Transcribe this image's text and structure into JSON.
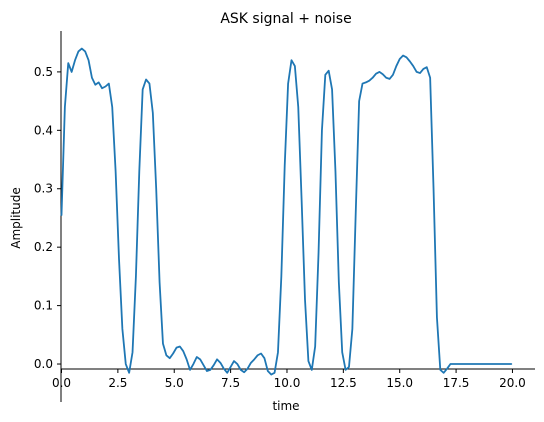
{
  "chart_data": {
    "type": "line",
    "title": "ASK signal + noise",
    "xlabel": "time",
    "ylabel": "Amplitude",
    "xlim": [
      0,
      21.0
    ],
    "ylim": [
      -0.065,
      0.57
    ],
    "xticks": [
      "0.0",
      "2.5",
      "5.0",
      "7.5",
      "10.0",
      "12.5",
      "15.0",
      "17.5",
      "20.0"
    ],
    "yticks": [
      "0.0",
      "0.1",
      "0.2",
      "0.3",
      "0.4",
      "0.5"
    ],
    "grid": false,
    "colors": {
      "line": "#1f77b4"
    },
    "series": [
      {
        "x": [
          0.0,
          0.15,
          0.3,
          0.45,
          0.6,
          0.75,
          0.9,
          1.05,
          1.2,
          1.35,
          1.5,
          1.65,
          1.8,
          1.95,
          2.1,
          2.25,
          2.4,
          2.55,
          2.7,
          2.85,
          3.0,
          3.15,
          3.3,
          3.45,
          3.6,
          3.75,
          3.9,
          4.05,
          4.2,
          4.35,
          4.5,
          4.65,
          4.8,
          4.95,
          5.1,
          5.25,
          5.4,
          5.55,
          5.7,
          5.85,
          6.0,
          6.15,
          6.3,
          6.45,
          6.6,
          6.75,
          6.9,
          7.05,
          7.2,
          7.35,
          7.5,
          7.65,
          7.8,
          7.95,
          8.1,
          8.25,
          8.4,
          8.55,
          8.7,
          8.85,
          9.0,
          9.15,
          9.3,
          9.45,
          9.6,
          9.75,
          9.9,
          10.05,
          10.2,
          10.35,
          10.5,
          10.65,
          10.8,
          10.95,
          11.1,
          11.25,
          11.4,
          11.55,
          11.7,
          11.85,
          12.0,
          12.15,
          12.3,
          12.45,
          12.6,
          12.75,
          12.9,
          13.05,
          13.2,
          13.35,
          13.5,
          13.65,
          13.8,
          13.95,
          14.1,
          14.25,
          14.4,
          14.55,
          14.7,
          14.85,
          15.0,
          15.15,
          15.3,
          15.45,
          15.6,
          15.75,
          15.9,
          16.05,
          16.2,
          16.35,
          16.5,
          16.65,
          16.8,
          16.95,
          17.1,
          17.25,
          17.4,
          17.55,
          17.7,
          17.85,
          18.0,
          18.15,
          18.3,
          18.45,
          18.6,
          18.75,
          18.9,
          19.05,
          19.2,
          19.35,
          19.5,
          19.65,
          19.8,
          19.95
        ],
        "y": [
          0.255,
          0.44,
          0.515,
          0.5,
          0.52,
          0.535,
          0.54,
          0.535,
          0.52,
          0.49,
          0.478,
          0.482,
          0.472,
          0.475,
          0.48,
          0.44,
          0.33,
          0.18,
          0.06,
          0.0,
          -0.015,
          0.02,
          0.15,
          0.33,
          0.47,
          0.487,
          0.48,
          0.43,
          0.3,
          0.14,
          0.035,
          0.015,
          0.01,
          0.018,
          0.028,
          0.03,
          0.022,
          0.008,
          -0.01,
          0.0,
          0.012,
          0.008,
          -0.002,
          -0.012,
          -0.01,
          -0.002,
          0.008,
          0.002,
          -0.008,
          -0.015,
          -0.005,
          0.005,
          0.0,
          -0.01,
          -0.014,
          -0.008,
          0.002,
          0.008,
          0.015,
          0.018,
          0.01,
          -0.012,
          -0.018,
          -0.015,
          0.02,
          0.15,
          0.34,
          0.48,
          0.52,
          0.51,
          0.44,
          0.28,
          0.11,
          0.005,
          -0.01,
          0.03,
          0.19,
          0.4,
          0.495,
          0.502,
          0.47,
          0.33,
          0.14,
          0.02,
          -0.01,
          -0.005,
          0.06,
          0.26,
          0.45,
          0.48,
          0.482,
          0.485,
          0.49,
          0.497,
          0.5,
          0.496,
          0.49,
          0.488,
          0.495,
          0.51,
          0.522,
          0.528,
          0.525,
          0.518,
          0.51,
          0.5,
          0.498,
          0.505,
          0.508,
          0.49,
          0.3,
          0.08,
          -0.01,
          -0.015,
          -0.008,
          0.0,
          0.0,
          0.0,
          0.0,
          0.0,
          0.0,
          0.0,
          0.0,
          0.0,
          0.0,
          0.0,
          0.0,
          0.0,
          0.0,
          0.0,
          0.0,
          0.0,
          0.0,
          0.0
        ]
      }
    ]
  }
}
